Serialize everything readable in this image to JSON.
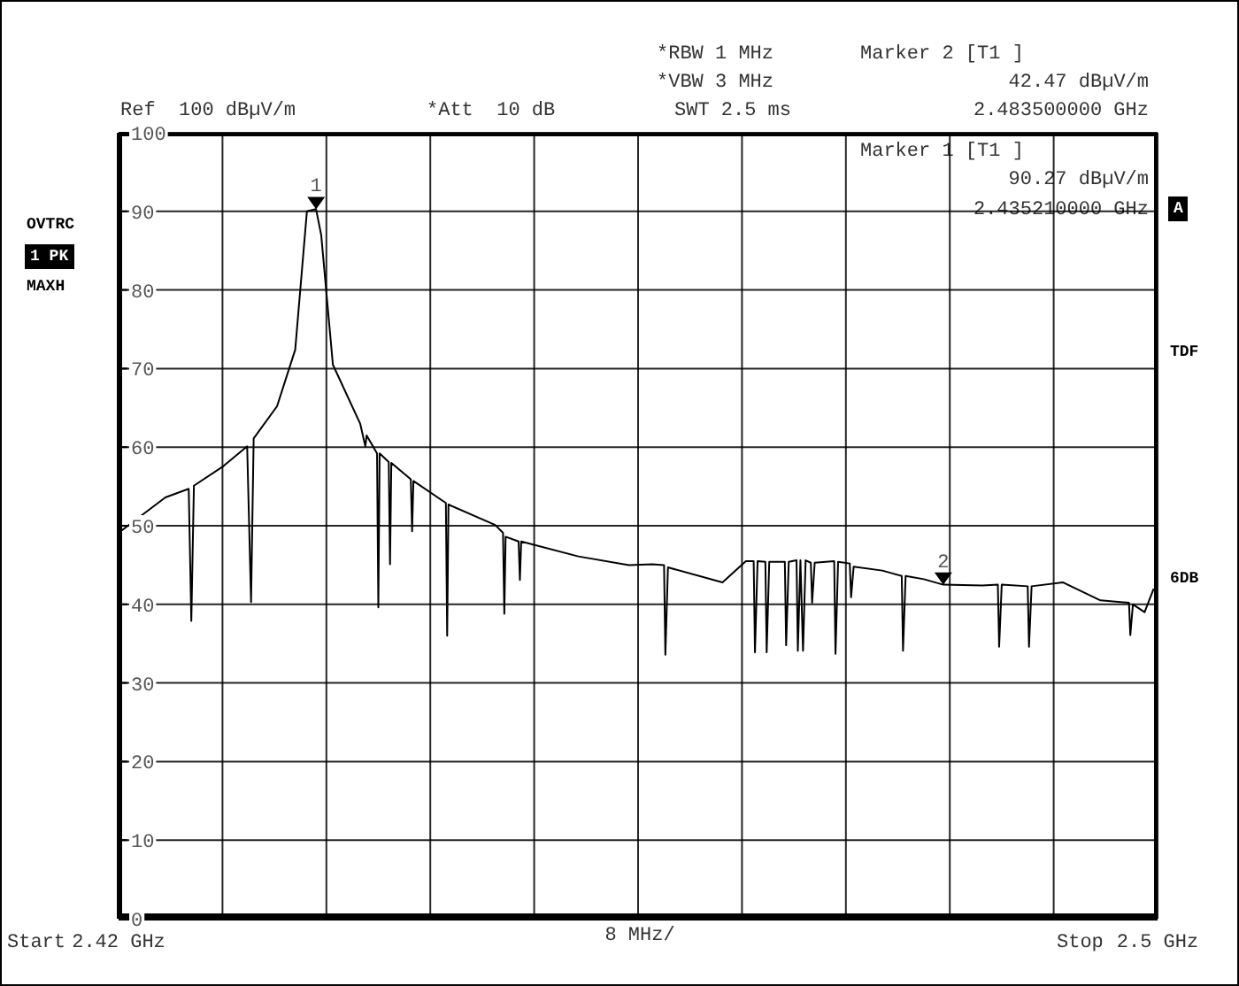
{
  "chart_data": {
    "type": "line",
    "xlabel": "8 MHz/",
    "x": [
      2.42,
      2.4236,
      2.4254,
      2.4256,
      2.4258,
      2.428,
      2.4299,
      2.4302,
      2.4304,
      2.4322,
      2.4336,
      2.4345,
      2.4352,
      2.4356,
      2.4365,
      2.4386,
      2.439,
      2.4391,
      2.4399,
      2.44,
      2.4401,
      2.4408,
      2.4409,
      2.441,
      2.4425,
      2.4426,
      2.4427,
      2.4452,
      2.4453,
      2.4454,
      2.449,
      2.4496,
      2.4497,
      2.4498,
      2.4508,
      2.4509,
      2.451,
      2.4554,
      2.4593,
      2.4611,
      2.462,
      2.4621,
      2.4623,
      2.4665,
      2.4683,
      2.4689,
      2.469,
      2.4692,
      2.4698,
      2.4699,
      2.4701,
      2.4713,
      2.4714,
      2.4716,
      2.4722,
      2.4723,
      2.4725,
      2.4727,
      2.4729,
      2.4733,
      2.4734,
      2.4736,
      2.4751,
      2.4752,
      2.4754,
      2.4763,
      2.4764,
      2.4766,
      2.4788,
      2.4803,
      2.4804,
      2.4806,
      2.482,
      2.4835,
      2.4865,
      2.4877,
      2.4878,
      2.488,
      2.49,
      2.4901,
      2.4903,
      2.4927,
      2.4956,
      2.4978,
      2.4979,
      2.4981,
      2.499,
      2.4997
    ],
    "series": [
      {
        "color": "#000000",
        "values": [
          49.1,
          53.6,
          54.7,
          37.9,
          55.1,
          57.5,
          60.1,
          40.3,
          61.1,
          65.2,
          72.4,
          90.0,
          90.3,
          87.0,
          70.5,
          63.0,
          60.1,
          61.5,
          59.2,
          39.6,
          59.2,
          58.1,
          45.1,
          58.0,
          55.9,
          49.3,
          55.7,
          52.9,
          36.0,
          52.7,
          50.1,
          49.1,
          38.8,
          48.6,
          48.0,
          43.1,
          48.0,
          46.1,
          45.0,
          45.1,
          45.0,
          33.6,
          44.7,
          42.8,
          45.5,
          45.5,
          33.9,
          45.5,
          45.4,
          33.9,
          45.4,
          45.4,
          34.8,
          45.4,
          45.6,
          34.1,
          45.6,
          34.1,
          45.6,
          45.3,
          40.2,
          45.3,
          45.5,
          33.7,
          45.4,
          45.2,
          40.9,
          44.8,
          44.3,
          43.6,
          34.1,
          43.6,
          43.2,
          42.5,
          42.4,
          42.5,
          34.6,
          42.5,
          42.3,
          34.6,
          42.3,
          42.8,
          40.5,
          40.2,
          36.1,
          40.0,
          39.0,
          42.0
        ]
      }
    ],
    "xlim": [
      2.42,
      2.5
    ],
    "xticks": [
      {
        "value": 2.42,
        "label": "2.42 GHz"
      },
      {
        "value": 2.428,
        "label": null
      },
      {
        "value": 2.436,
        "label": null
      },
      {
        "value": 2.444,
        "label": null
      },
      {
        "value": 2.452,
        "label": null
      },
      {
        "value": 2.46,
        "label": null
      },
      {
        "value": 2.468,
        "label": null
      },
      {
        "value": 2.476,
        "label": null
      },
      {
        "value": 2.484,
        "label": null
      },
      {
        "value": 2.492,
        "label": null
      },
      {
        "value": 2.5,
        "label": "2.5 GHz"
      }
    ],
    "ylim": [
      0,
      100
    ],
    "yticks": [
      0,
      10,
      20,
      30,
      40,
      50,
      60,
      70,
      80,
      90,
      100
    ],
    "grid": true,
    "marker": "none",
    "line_style": "solid",
    "annotations": [
      {
        "text": "1",
        "x": 2.43521,
        "y": 90.27
      },
      {
        "text": "2",
        "x": 2.4835,
        "y": 42.47
      },
      "Ref  100 dBµV/m",
      "*Att  10 dB",
      "*RBW 1 MHz",
      "*VBW 3 MHz",
      "SWT 2.5 ms",
      "Marker 2 [T1 ]",
      "42.47 dBµV/m",
      "2.483500000 GHz",
      "Marker 1 [T1 ]",
      "90.27 dBµV/m",
      "2.435210000 GHz",
      "OVTRC",
      "1 PK",
      "MAXH",
      "A",
      "TDF",
      "6DB",
      "Start",
      "Stop"
    ]
  }
}
